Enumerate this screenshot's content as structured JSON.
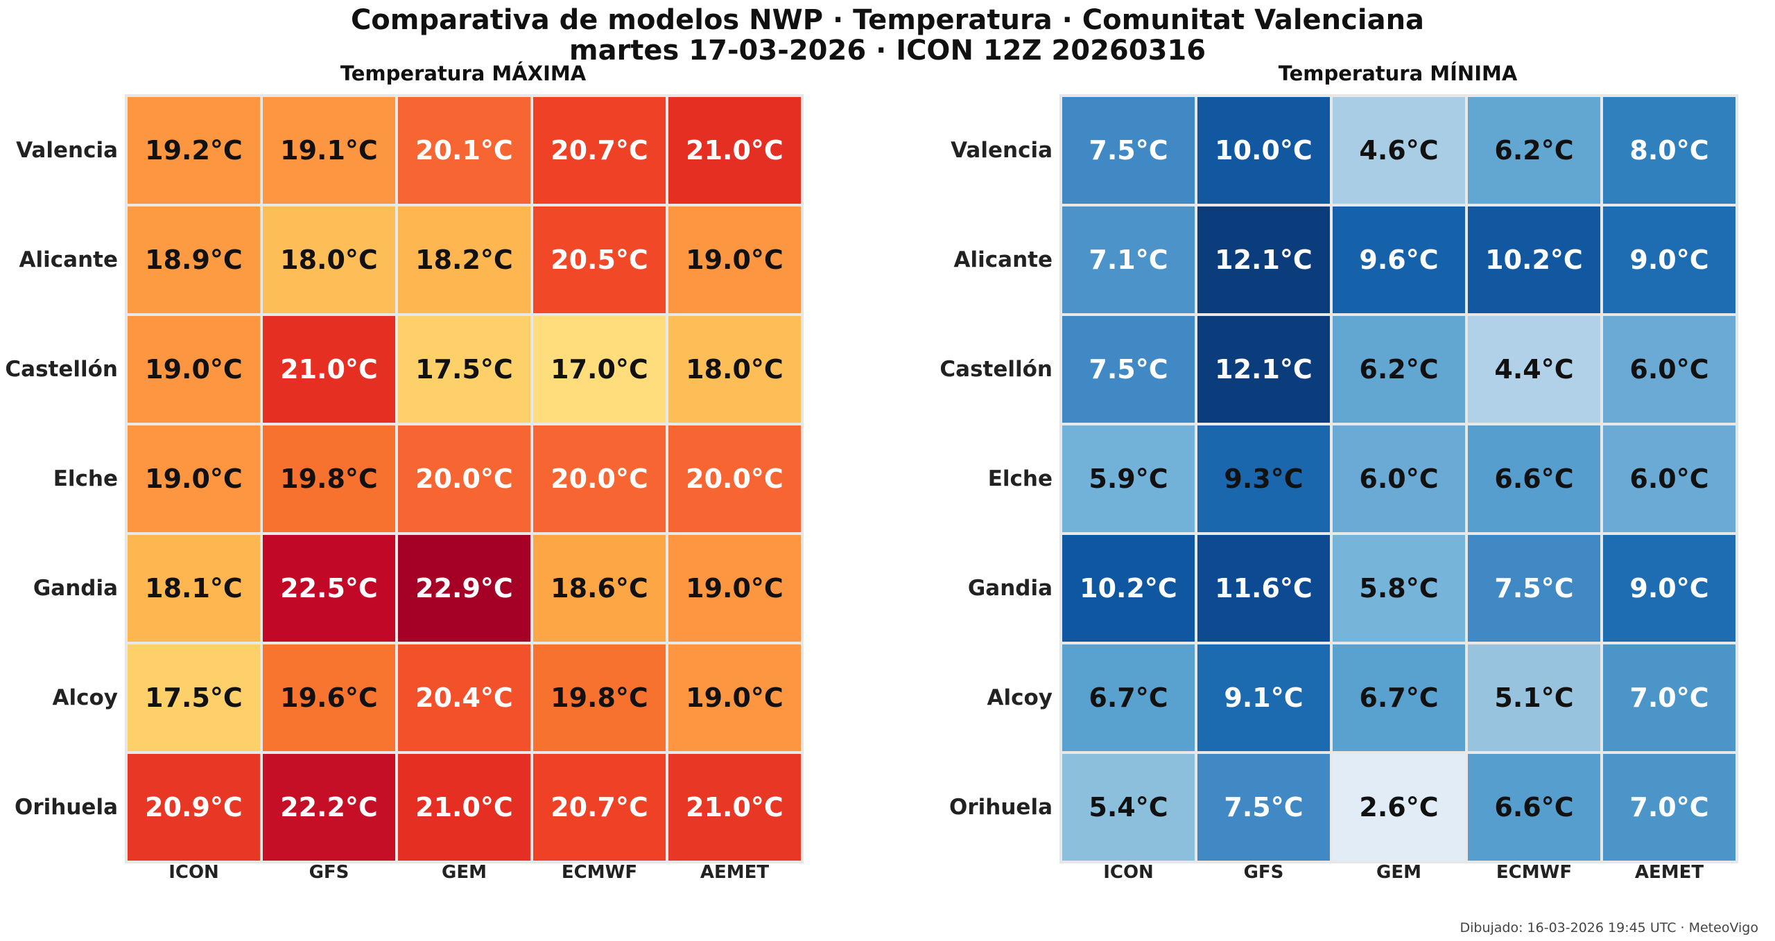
{
  "title_line1": "Comparativa de modelos NWP · Temperatura · Comunitat Valenciana",
  "title_line2": "martes 17-03-2026  ·  ICON 12Z 20260316",
  "footer": "Dibujado: 16-03-2026 19:45 UTC · MeteoVigo",
  "chart_data": [
    {
      "type": "heatmap",
      "title": "Temperatura MÁXIMA",
      "colormap": "YlOrRd",
      "vrange": [
        16.5,
        23.0
      ],
      "rows": [
        "Valencia",
        "Alicante",
        "Castellón",
        "Elche",
        "Gandia",
        "Alcoy",
        "Orihuela"
      ],
      "columns": [
        "ICON",
        "GFS",
        "GEM",
        "ECMWF",
        "AEMET"
      ],
      "values": [
        [
          19.2,
          19.1,
          20.1,
          20.7,
          21.0
        ],
        [
          18.9,
          18.0,
          18.2,
          20.5,
          19.0
        ],
        [
          19.0,
          21.0,
          17.5,
          17.0,
          18.0
        ],
        [
          19.0,
          19.8,
          20.0,
          20.0,
          20.0
        ],
        [
          18.1,
          22.5,
          22.9,
          18.6,
          19.0
        ],
        [
          17.5,
          19.6,
          20.4,
          19.8,
          19.0
        ],
        [
          20.9,
          22.2,
          21.0,
          20.7,
          21.0
        ]
      ],
      "unit": "°C",
      "colors": [
        [
          "#fd9640",
          "#fd9640",
          "#f66532",
          "#ef4126",
          "#e42f22"
        ],
        [
          "#fd9b42",
          "#febe57",
          "#feb651",
          "#f14828",
          "#fd9640"
        ],
        [
          "#fd9640",
          "#e42f22",
          "#fed06a",
          "#ffdd7c",
          "#febe57"
        ],
        [
          "#fd9640",
          "#f8722f",
          "#f66532",
          "#f66532",
          "#f66532"
        ],
        [
          "#feb651",
          "#c10826",
          "#a50026",
          "#fda646",
          "#fd9640"
        ],
        [
          "#fed06a",
          "#f8752f",
          "#f3512a",
          "#f8722f",
          "#fd9640"
        ],
        [
          "#e83825",
          "#c50f27",
          "#e42f22",
          "#ef4126",
          "#e83825"
        ]
      ],
      "text_colors": [
        [
          "#111111",
          "#111111",
          "#ffffff",
          "#ffffff",
          "#ffffff"
        ],
        [
          "#111111",
          "#111111",
          "#111111",
          "#ffffff",
          "#111111"
        ],
        [
          "#111111",
          "#ffffff",
          "#111111",
          "#111111",
          "#111111"
        ],
        [
          "#111111",
          "#111111",
          "#ffffff",
          "#ffffff",
          "#ffffff"
        ],
        [
          "#111111",
          "#ffffff",
          "#ffffff",
          "#111111",
          "#111111"
        ],
        [
          "#111111",
          "#111111",
          "#ffffff",
          "#111111",
          "#111111"
        ],
        [
          "#ffffff",
          "#ffffff",
          "#ffffff",
          "#ffffff",
          "#ffffff"
        ]
      ]
    },
    {
      "type": "heatmap",
      "title": "Temperatura MÍNIMA",
      "colormap": "Blues",
      "vrange": [
        2.0,
        12.5
      ],
      "rows": [
        "Valencia",
        "Alicante",
        "Castellón",
        "Elche",
        "Gandia",
        "Alcoy",
        "Orihuela"
      ],
      "columns": [
        "ICON",
        "GFS",
        "GEM",
        "ECMWF",
        "AEMET"
      ],
      "values": [
        [
          7.5,
          10.0,
          4.6,
          6.2,
          8.0
        ],
        [
          7.1,
          12.1,
          9.6,
          10.2,
          9.0
        ],
        [
          7.5,
          12.1,
          6.2,
          4.4,
          6.0
        ],
        [
          5.9,
          9.3,
          6.0,
          6.6,
          6.0
        ],
        [
          10.2,
          11.6,
          5.8,
          7.5,
          9.0
        ],
        [
          6.7,
          9.1,
          6.7,
          5.1,
          7.0
        ],
        [
          5.4,
          7.5,
          2.6,
          6.6,
          7.0
        ]
      ],
      "unit": "°C",
      "colors": [
        [
          "#4089c4",
          "#1158a1",
          "#a9cde4",
          "#62a6d2",
          "#3080bd"
        ],
        [
          "#4b93c9",
          "#0b3d7d",
          "#1562aa",
          "#1158a1",
          "#1e6cb1"
        ],
        [
          "#4089c4",
          "#0b3d7d",
          "#62a6d2",
          "#b0d1e8",
          "#6aaad4"
        ],
        [
          "#73b2d8",
          "#1a67ae",
          "#6aaad4",
          "#559ece",
          "#6aaad4"
        ],
        [
          "#0f58a1",
          "#0d4a91",
          "#77b4d9",
          "#4089c4",
          "#1e6cb1"
        ],
        [
          "#59a1cf",
          "#1c6aaf",
          "#59a1cf",
          "#97c3df",
          "#4b95c9"
        ],
        [
          "#8bbfdc",
          "#4089c4",
          "#e1ecf6",
          "#559ece",
          "#4b95c9"
        ]
      ],
      "text_colors": [
        [
          "#ffffff",
          "#ffffff",
          "#111111",
          "#111111",
          "#ffffff"
        ],
        [
          "#ffffff",
          "#ffffff",
          "#ffffff",
          "#ffffff",
          "#ffffff"
        ],
        [
          "#ffffff",
          "#ffffff",
          "#111111",
          "#111111",
          "#111111"
        ],
        [
          "#111111",
          "#111111",
          "#111111",
          "#111111",
          "#111111"
        ],
        [
          "#ffffff",
          "#ffffff",
          "#111111",
          "#ffffff",
          "#ffffff"
        ],
        [
          "#111111",
          "#ffffff",
          "#111111",
          "#111111",
          "#ffffff"
        ],
        [
          "#111111",
          "#ffffff",
          "#111111",
          "#111111",
          "#ffffff"
        ]
      ]
    }
  ]
}
